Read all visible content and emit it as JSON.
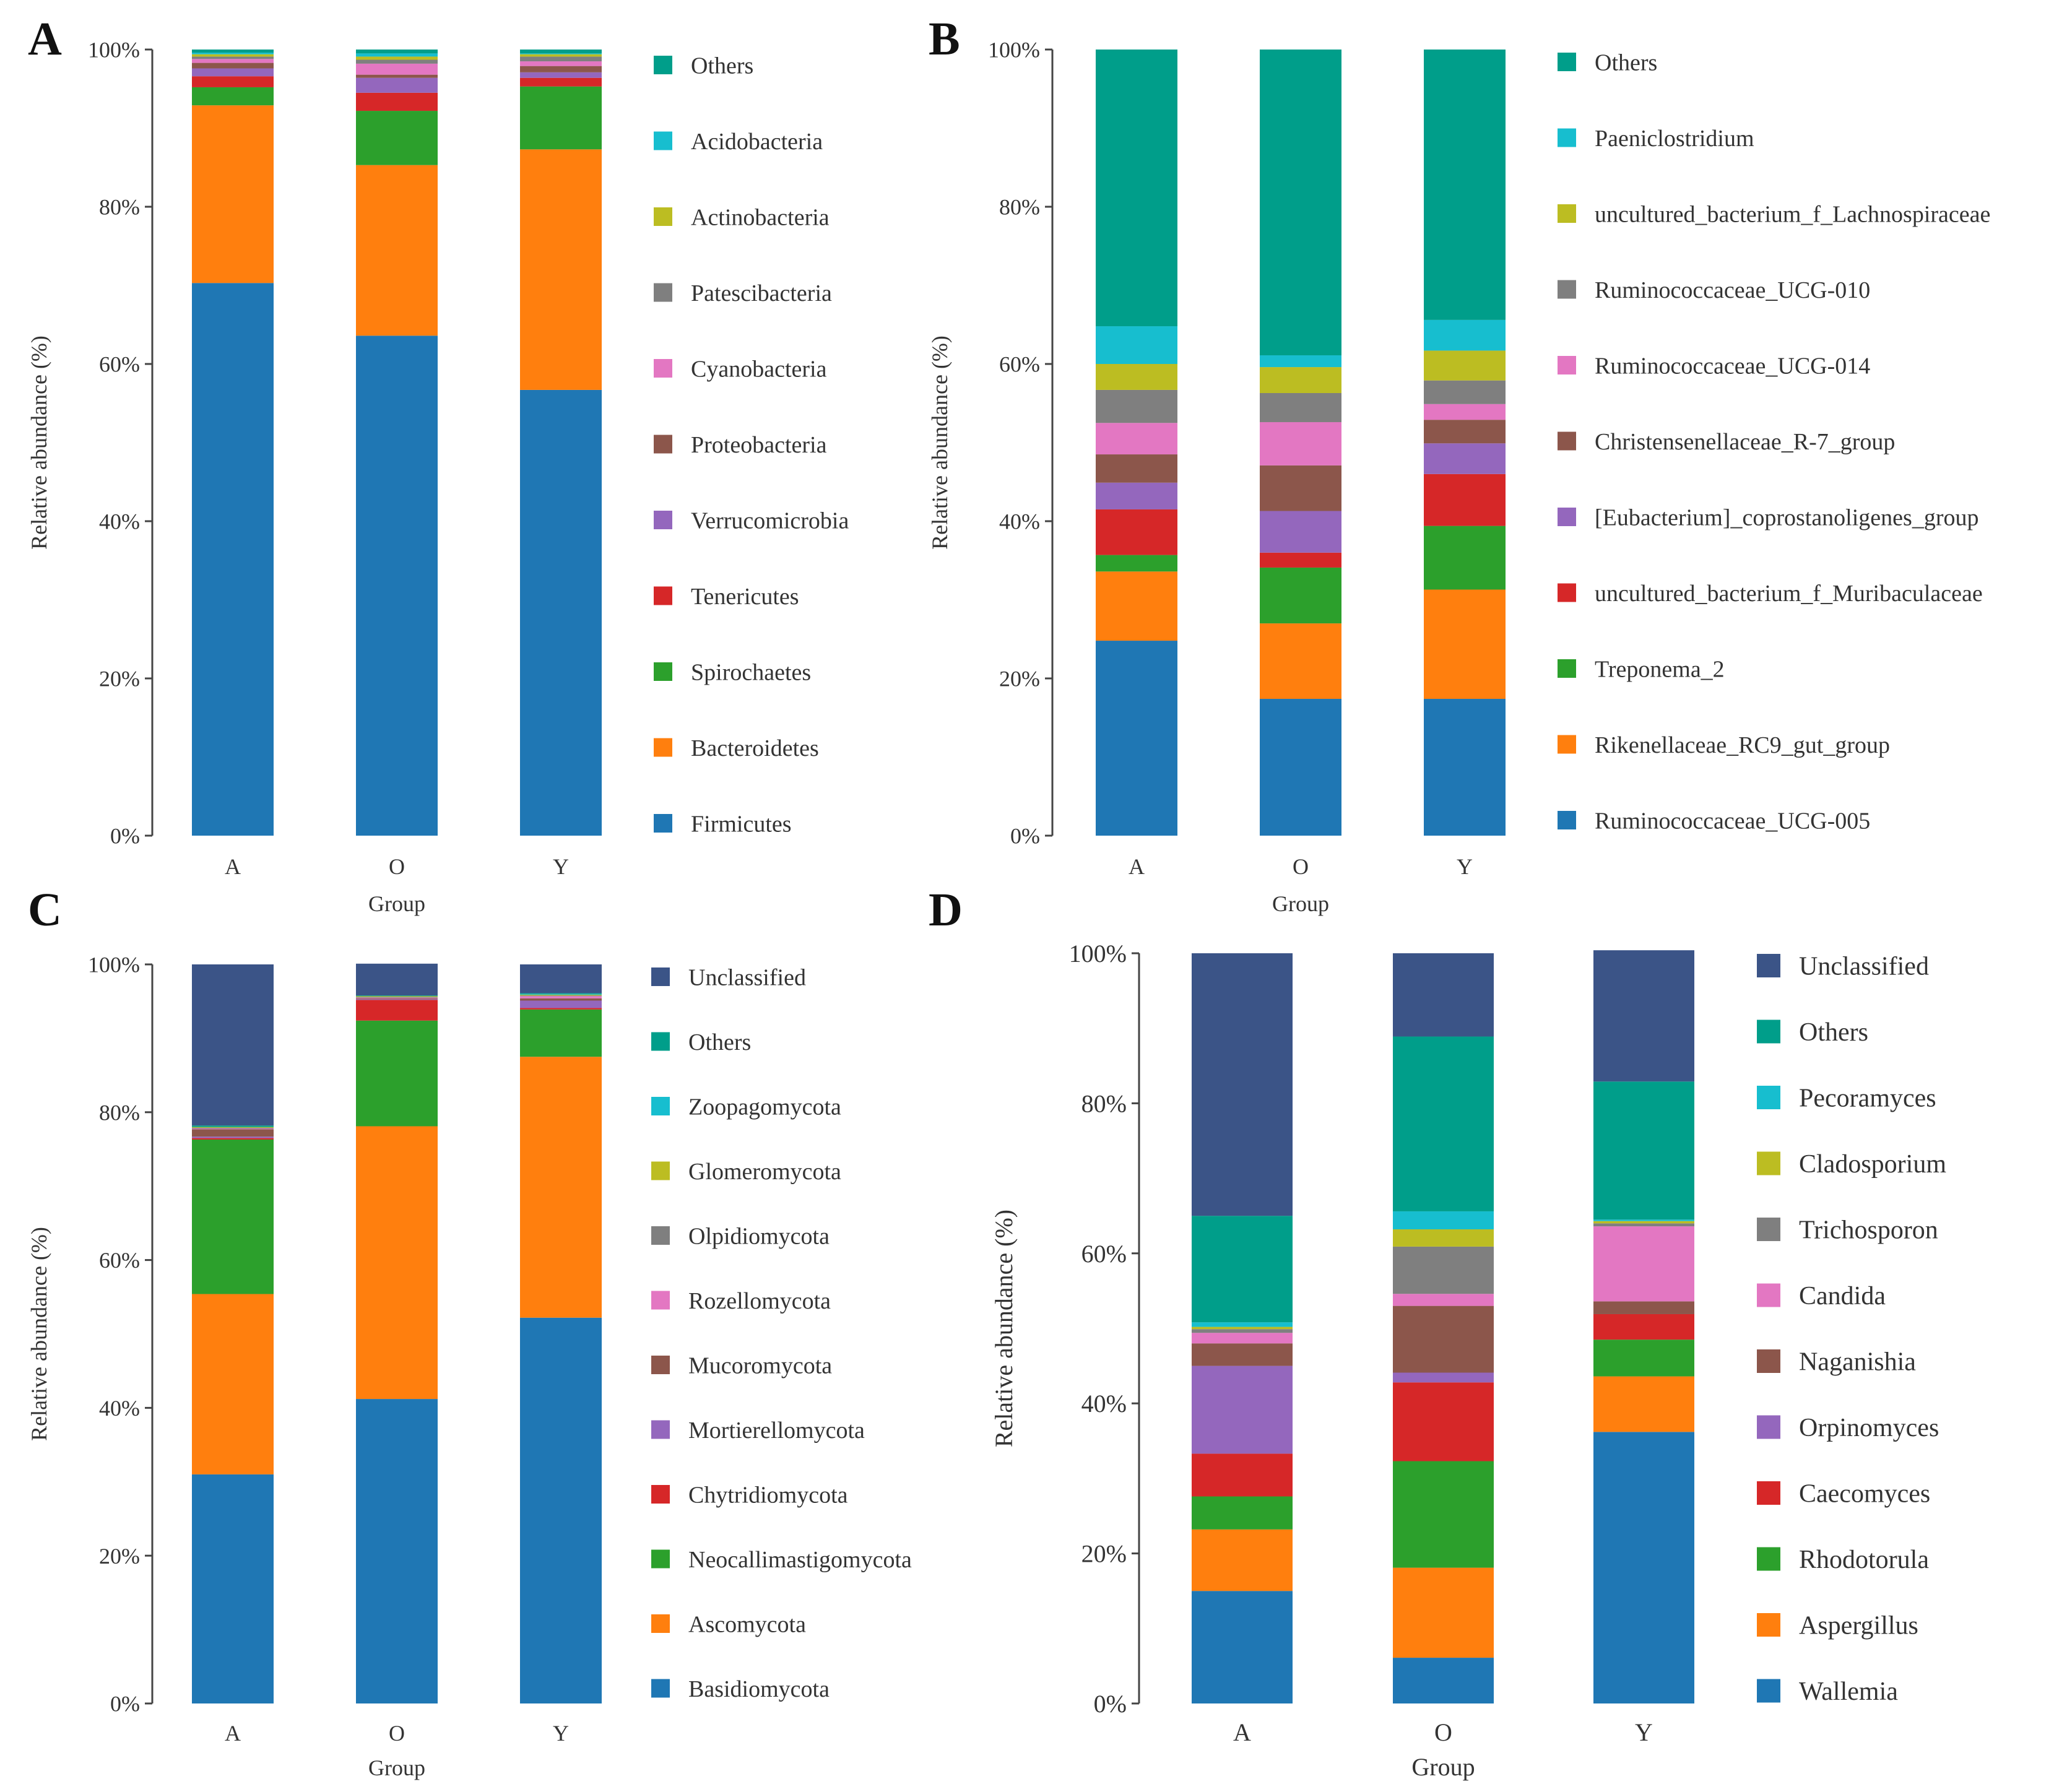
{
  "colors": {
    "Firmicutes": "#1f77b4",
    "Bacteroidetes": "#ff7f0e",
    "Spirochaetes": "#2ca02c",
    "Tenericutes": "#d62728",
    "Verrucomicrobia": "#9467bd",
    "Proteobacteria": "#8c564b",
    "Cyanobacteria": "#e377c2",
    "Patescibacteria": "#7f7f7f",
    "Actinobacteria": "#bcbd22",
    "Acidobacteria": "#17becf",
    "Others": "#009e8a",
    "Unclassified": "#3b5487"
  },
  "chart_data": [
    {
      "panel": "A",
      "type": "bar",
      "stacked": true,
      "categories": [
        "A",
        "O",
        "Y"
      ],
      "xlabel": "Group",
      "ylabel": "Relative abundance (%)",
      "ylim": [
        0,
        100
      ],
      "yticks": [
        "0%",
        "20%",
        "40%",
        "60%",
        "80%",
        "100%"
      ],
      "legend": [
        "Others",
        "Acidobacteria",
        "Actinobacteria",
        "Patescibacteria",
        "Cyanobacteria",
        "Proteobacteria",
        "Verrucomicrobia",
        "Tenericutes",
        "Spirochaetes",
        "Bacteroidetes",
        "Firmicutes"
      ],
      "series": [
        {
          "name": "Firmicutes",
          "color": "#1f77b4",
          "values": [
            70.3,
            63.6,
            56.7
          ]
        },
        {
          "name": "Bacteroidetes",
          "color": "#ff7f0e",
          "values": [
            22.6,
            21.7,
            30.6
          ]
        },
        {
          "name": "Spirochaetes",
          "color": "#2ca02c",
          "values": [
            2.3,
            6.9,
            8.0
          ]
        },
        {
          "name": "Tenericutes",
          "color": "#d62728",
          "values": [
            1.4,
            2.3,
            1.1
          ]
        },
        {
          "name": "Verrucomicrobia",
          "color": "#9467bd",
          "values": [
            1.0,
            1.9,
            0.7
          ]
        },
        {
          "name": "Proteobacteria",
          "color": "#8c564b",
          "values": [
            0.7,
            0.4,
            0.8
          ]
        },
        {
          "name": "Cyanobacteria",
          "color": "#e377c2",
          "values": [
            0.5,
            1.4,
            0.6
          ]
        },
        {
          "name": "Patescibacteria",
          "color": "#7f7f7f",
          "values": [
            0.3,
            0.5,
            0.6
          ]
        },
        {
          "name": "Actinobacteria",
          "color": "#bcbd22",
          "values": [
            0.3,
            0.4,
            0.3
          ]
        },
        {
          "name": "Acidobacteria",
          "color": "#17becf",
          "values": [
            0.2,
            0.4,
            0.1
          ]
        },
        {
          "name": "Others",
          "color": "#009e8a",
          "values": [
            0.4,
            0.5,
            0.5
          ]
        }
      ]
    },
    {
      "panel": "B",
      "type": "bar",
      "stacked": true,
      "categories": [
        "A",
        "O",
        "Y"
      ],
      "xlabel": "Group",
      "ylabel": "Relative abundance (%)",
      "ylim": [
        0,
        100
      ],
      "yticks": [
        "0%",
        "20%",
        "40%",
        "60%",
        "80%",
        "100%"
      ],
      "legend": [
        "Others",
        "Paeniclostridium",
        "uncultured_bacterium_f_Lachnospiraceae",
        "Ruminococcaceae_UCG-010",
        "Ruminococcaceae_UCG-014",
        "Christensenellaceae_R-7_group",
        "[Eubacterium]_coprostanoligenes_group",
        "uncultured_bacterium_f_Muribaculaceae",
        "Treponema_2",
        "Rikenellaceae_RC9_gut_group",
        "Ruminococcaceae_UCG-005"
      ],
      "series": [
        {
          "name": "Ruminococcaceae_UCG-005",
          "color": "#1f77b4",
          "values": [
            24.8,
            17.4,
            17.4
          ]
        },
        {
          "name": "Rikenellaceae_RC9_gut_group",
          "color": "#ff7f0e",
          "values": [
            8.8,
            9.6,
            13.9
          ]
        },
        {
          "name": "Treponema_2",
          "color": "#2ca02c",
          "values": [
            2.1,
            7.1,
            8.1
          ]
        },
        {
          "name": "uncultured_bacterium_f_Muribaculaceae",
          "color": "#d62728",
          "values": [
            5.8,
            1.9,
            6.6
          ]
        },
        {
          "name": "[Eubacterium]_coprostanoligenes_group",
          "color": "#9467bd",
          "values": [
            3.4,
            5.3,
            3.9
          ]
        },
        {
          "name": "Christensenellaceae_R-7_group",
          "color": "#8c564b",
          "values": [
            3.6,
            5.8,
            3.0
          ]
        },
        {
          "name": "Ruminococcaceae_UCG-014",
          "color": "#e377c2",
          "values": [
            4.0,
            5.5,
            2.0
          ]
        },
        {
          "name": "Ruminococcaceae_UCG-010",
          "color": "#7f7f7f",
          "values": [
            4.2,
            3.7,
            3.0
          ]
        },
        {
          "name": "uncultured_bacterium_f_Lachnospiraceae",
          "color": "#bcbd22",
          "values": [
            3.3,
            3.3,
            3.8
          ]
        },
        {
          "name": "Paeniclostridium",
          "color": "#17becf",
          "values": [
            4.8,
            1.5,
            3.9
          ]
        },
        {
          "name": "Others",
          "color": "#009e8a",
          "values": [
            35.2,
            38.9,
            34.4
          ]
        }
      ]
    },
    {
      "panel": "C",
      "type": "bar",
      "stacked": true,
      "categories": [
        "A",
        "O",
        "Y"
      ],
      "xlabel": "Group",
      "ylabel": "Relative abundance (%)",
      "ylim": [
        0,
        100
      ],
      "yticks": [
        "0%",
        "20%",
        "40%",
        "60%",
        "80%",
        "100%"
      ],
      "legend": [
        "Unclassified",
        "Others",
        "Zoopagomycota",
        "Glomeromycota",
        "Olpidiomycota",
        "Rozellomycota",
        "Mucoromycota",
        "Mortierellomycota",
        "Chytridiomycota",
        "Neocallimastigomycota",
        "Ascomycota",
        "Basidiomycota"
      ],
      "series": [
        {
          "name": "Basidiomycota",
          "color": "#1f77b4",
          "values": [
            31.0,
            41.2,
            52.2
          ]
        },
        {
          "name": "Ascomycota",
          "color": "#ff7f0e",
          "values": [
            24.4,
            36.9,
            35.3
          ]
        },
        {
          "name": "Neocallimastigomycota",
          "color": "#2ca02c",
          "values": [
            20.9,
            14.3,
            6.4
          ]
        },
        {
          "name": "Chytridiomycota",
          "color": "#d62728",
          "values": [
            0.2,
            2.8,
            0.2
          ]
        },
        {
          "name": "Mortierellomycota",
          "color": "#9467bd",
          "values": [
            0.2,
            0.1,
            1.0
          ]
        },
        {
          "name": "Mucoromycota",
          "color": "#8c564b",
          "values": [
            1.0,
            0.1,
            0.3
          ]
        },
        {
          "name": "Rozellomycota",
          "color": "#e377c2",
          "values": [
            0.1,
            0.1,
            0.3
          ]
        },
        {
          "name": "Olpidiomycota",
          "color": "#7f7f7f",
          "values": [
            0.1,
            0.1,
            0.1
          ]
        },
        {
          "name": "Glomeromycota",
          "color": "#bcbd22",
          "values": [
            0.1,
            0.1,
            0.1
          ]
        },
        {
          "name": "Zoopagomycota",
          "color": "#17becf",
          "values": [
            0.0,
            0.0,
            0.1
          ]
        },
        {
          "name": "Others",
          "color": "#009e8a",
          "values": [
            0.2,
            0.1,
            0.1
          ]
        },
        {
          "name": "Unclassified",
          "color": "#3b5487",
          "values": [
            21.8,
            4.3,
            3.9
          ]
        }
      ]
    },
    {
      "panel": "D",
      "type": "bar",
      "stacked": true,
      "categories": [
        "A",
        "O",
        "Y"
      ],
      "xlabel": "Group",
      "ylabel": "Relative abundance (%)",
      "ylim": [
        0,
        100
      ],
      "yticks": [
        "0%",
        "20%",
        "40%",
        "60%",
        "80%",
        "100%"
      ],
      "legend": [
        "Unclassified",
        "Others",
        "Pecoramyces",
        "Cladosporium",
        "Trichosporon",
        "Candida",
        "Naganishia",
        "Orpinomyces",
        "Caecomyces",
        "Rhodotorula",
        "Aspergillus",
        "Wallemia"
      ],
      "series": [
        {
          "name": "Wallemia",
          "color": "#1f77b4",
          "values": [
            15.0,
            6.1,
            36.2
          ]
        },
        {
          "name": "Aspergillus",
          "color": "#ff7f0e",
          "values": [
            8.2,
            12.0,
            7.4
          ]
        },
        {
          "name": "Rhodotorula",
          "color": "#2ca02c",
          "values": [
            4.4,
            14.2,
            4.9
          ]
        },
        {
          "name": "Caecomyces",
          "color": "#d62728",
          "values": [
            5.7,
            10.5,
            3.4
          ]
        },
        {
          "name": "Orpinomyces",
          "color": "#9467bd",
          "values": [
            11.7,
            1.3,
            0.0
          ]
        },
        {
          "name": "Naganishia",
          "color": "#8c564b",
          "values": [
            3.0,
            8.9,
            1.7
          ]
        },
        {
          "name": "Candida",
          "color": "#e377c2",
          "values": [
            1.4,
            1.6,
            10.0
          ]
        },
        {
          "name": "Trichosporon",
          "color": "#7f7f7f",
          "values": [
            0.5,
            6.3,
            0.4
          ]
        },
        {
          "name": "Cladosporium",
          "color": "#bcbd22",
          "values": [
            0.3,
            2.3,
            0.3
          ]
        },
        {
          "name": "Pecoramyces",
          "color": "#17becf",
          "values": [
            0.6,
            2.4,
            0.2
          ]
        },
        {
          "name": "Others",
          "color": "#009e8a",
          "values": [
            14.2,
            23.3,
            18.4
          ]
        },
        {
          "name": "Unclassified",
          "color": "#3b5487",
          "values": [
            35.0,
            11.1,
            17.5
          ]
        }
      ]
    }
  ]
}
